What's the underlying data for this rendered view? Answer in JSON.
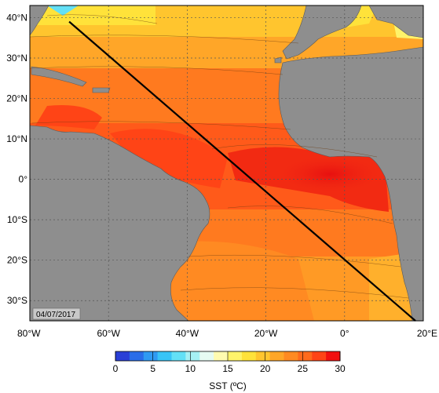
{
  "map": {
    "date_label": "04/07/2017",
    "lat_ticks": [
      "40°N",
      "30°N",
      "20°N",
      "10°N",
      "0°",
      "10°S",
      "20°S",
      "30°S"
    ],
    "lon_ticks": [
      "80°W",
      "60°W",
      "40°W",
      "20°W",
      "0°",
      "20°E"
    ],
    "lat_values": [
      40,
      30,
      20,
      10,
      0,
      -10,
      -20,
      -30
    ],
    "lon_values": [
      -80,
      -60,
      -40,
      -20,
      0,
      20
    ],
    "extent": {
      "lon_min": -80,
      "lon_max": 20,
      "lat_min": -35,
      "lat_max": 43
    },
    "transect": {
      "start": {
        "lon": -70,
        "lat": 39
      },
      "end": {
        "lon": 18,
        "lat": -35
      }
    }
  },
  "colorbar": {
    "label": "SST (ºC)",
    "ticks": [
      "0",
      "5",
      "10",
      "15",
      "20",
      "25",
      "30"
    ],
    "colors": [
      "#2a3fd6",
      "#2a6de8",
      "#2f9af2",
      "#38c4f7",
      "#63e0f6",
      "#a6f0f4",
      "#e6fbf2",
      "#fffbb0",
      "#fff36a",
      "#ffe23a",
      "#ffc52e",
      "#ffa628",
      "#ff8a22",
      "#ff6a1c",
      "#ff4416",
      "#f21010"
    ]
  },
  "colors": {
    "land": "#8e8e8e",
    "transect": "#000000",
    "gridline": "#555555"
  }
}
